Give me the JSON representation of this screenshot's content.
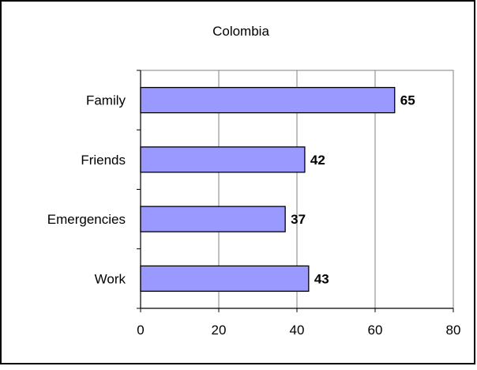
{
  "chart_data": {
    "type": "bar",
    "orientation": "horizontal",
    "title": "Colombia",
    "xlabel": "",
    "ylabel": "",
    "categories": [
      "Family",
      "Friends",
      "Emergencies",
      "Work"
    ],
    "values": [
      65,
      42,
      37,
      43
    ],
    "xlim": [
      0,
      80
    ],
    "xticks": [
      0,
      20,
      40,
      60,
      80
    ],
    "grid": "vertical",
    "legend": "none",
    "data_labels": true,
    "colors": {
      "bar_fill": "#9999ff",
      "bar_stroke": "#000000",
      "grid": "#808080",
      "frame": "#000000",
      "plot_border": "#808080",
      "background": "#ffffff"
    }
  }
}
